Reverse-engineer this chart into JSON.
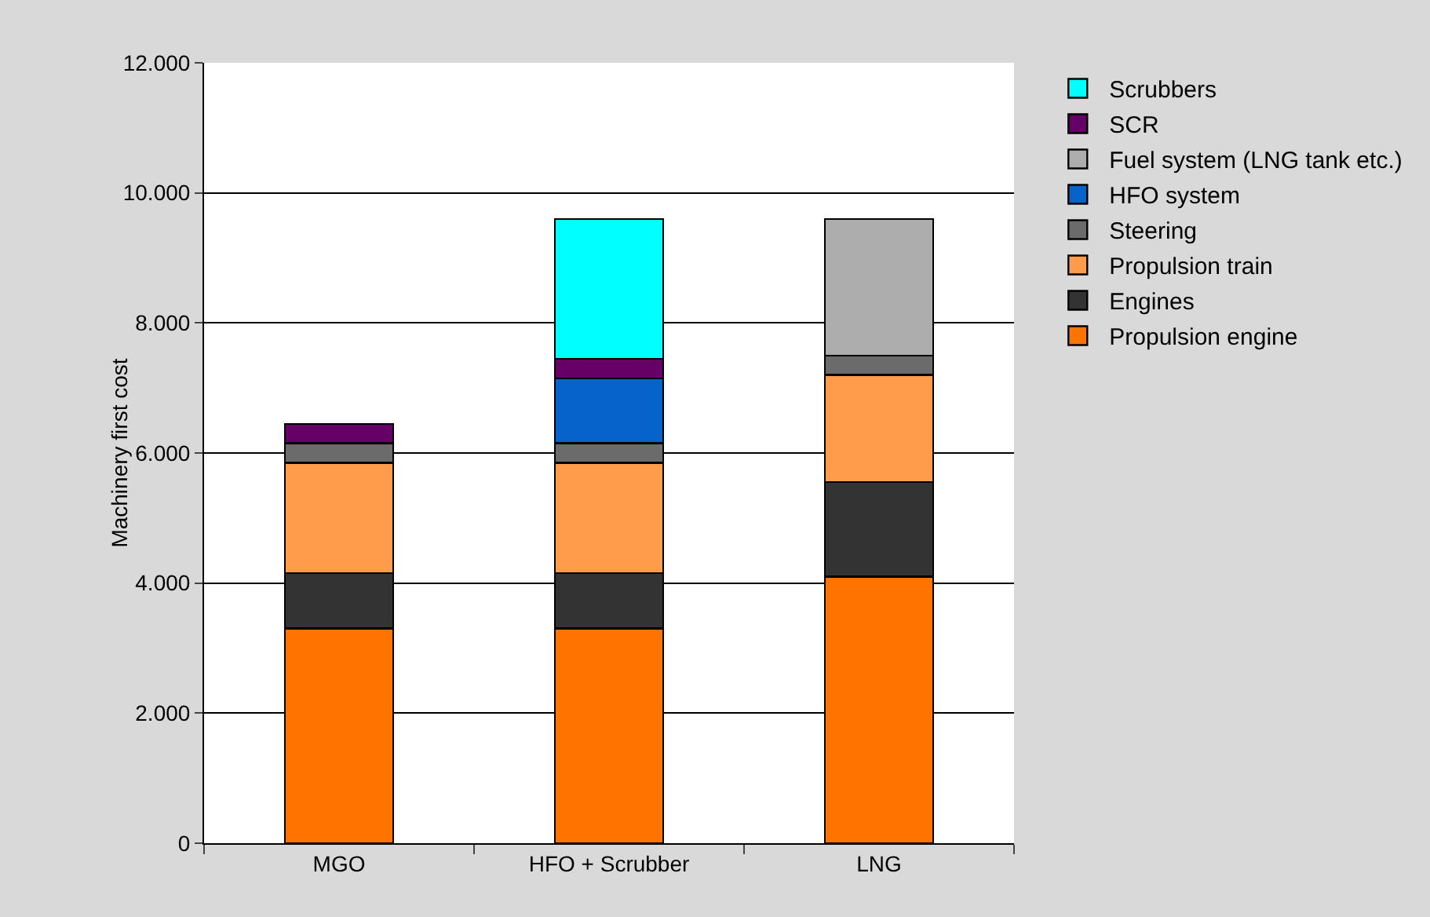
{
  "chart_data": {
    "type": "bar",
    "stacked": true,
    "ylabel": "Machinery first cost",
    "categories": [
      "MGO",
      "HFO + Scrubber",
      "LNG"
    ],
    "series": [
      {
        "name": "Propulsion engine",
        "color": "#ff7300",
        "values": [
          3300,
          3300,
          4100
        ]
      },
      {
        "name": "Engines",
        "color": "#333333",
        "values": [
          850,
          850,
          1450
        ]
      },
      {
        "name": "Propulsion train",
        "color": "#ff9c4b",
        "values": [
          1700,
          1700,
          1650
        ]
      },
      {
        "name": "Steering",
        "color": "#6b6b6b",
        "values": [
          300,
          300,
          300
        ]
      },
      {
        "name": "HFO system",
        "color": "#0563c9",
        "values": [
          null,
          1000,
          null
        ]
      },
      {
        "name": "Fuel system (LNG tank etc.)",
        "color": "#adadad",
        "values": [
          null,
          null,
          2100
        ]
      },
      {
        "name": "SCR",
        "color": "#660066",
        "values": [
          300,
          300,
          null
        ]
      },
      {
        "name": "Scrubbers",
        "color": "#00ffff",
        "values": [
          null,
          2150,
          null
        ]
      }
    ],
    "ylim": [
      0,
      12000
    ],
    "yticks": [
      {
        "value": 0,
        "label": "0"
      },
      {
        "value": 2000,
        "label": "2.000"
      },
      {
        "value": 4000,
        "label": "4.000"
      },
      {
        "value": 6000,
        "label": "6.000"
      },
      {
        "value": 8000,
        "label": "8.000"
      },
      {
        "value": 10000,
        "label": "10.000"
      },
      {
        "value": 12000,
        "label": "12.000"
      }
    ],
    "grid": "y",
    "legend": "right"
  }
}
